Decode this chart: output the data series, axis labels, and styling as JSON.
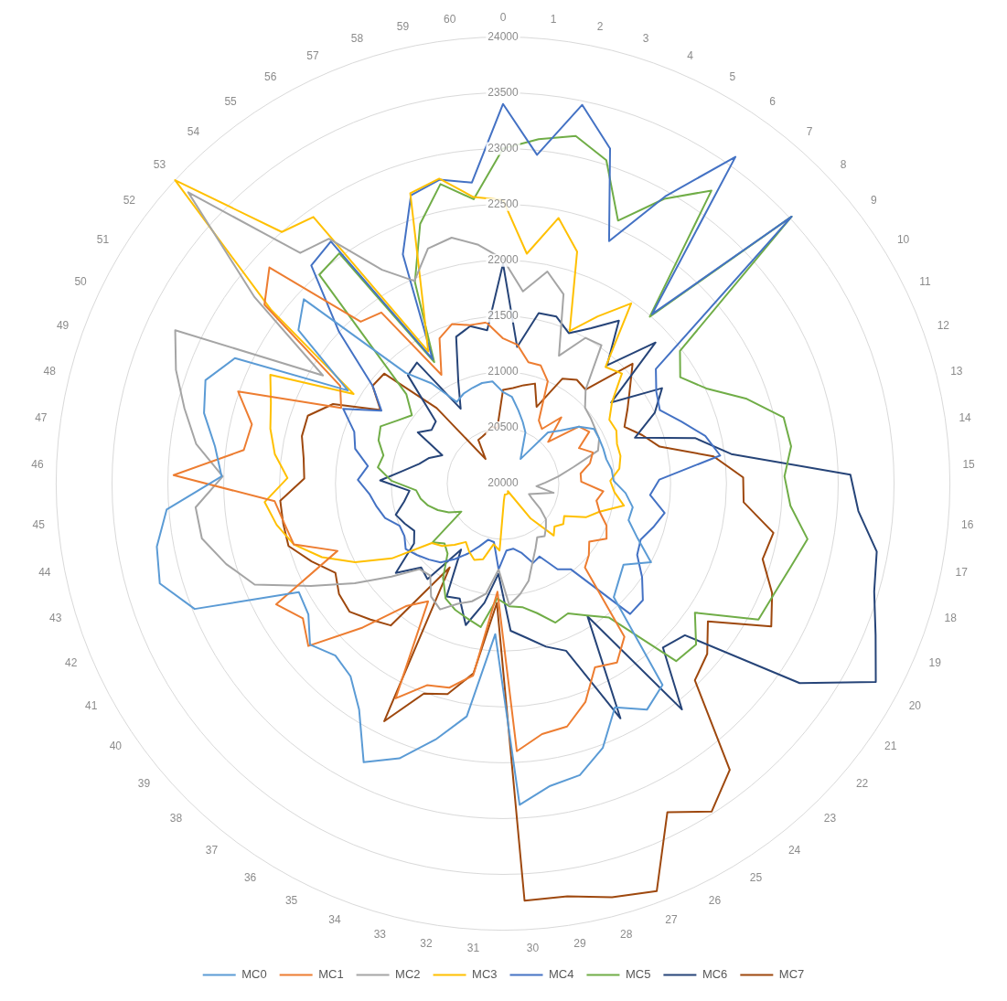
{
  "chart_data": {
    "type": "radar",
    "categories": [
      "0",
      "1",
      "2",
      "3",
      "4",
      "5",
      "6",
      "7",
      "8",
      "9",
      "10",
      "11",
      "12",
      "13",
      "14",
      "15",
      "16",
      "17",
      "18",
      "19",
      "20",
      "21",
      "22",
      "23",
      "24",
      "25",
      "26",
      "27",
      "28",
      "29",
      "30",
      "31",
      "32",
      "33",
      "34",
      "35",
      "36",
      "37",
      "38",
      "39",
      "40",
      "41",
      "42",
      "43",
      "44",
      "45",
      "46",
      "47",
      "48",
      "49",
      "50",
      "51",
      "52",
      "53",
      "54",
      "55",
      "56",
      "57",
      "58",
      "59",
      "60"
    ],
    "ylim": [
      20000,
      24000
    ],
    "yticks": [
      20000,
      20500,
      21000,
      21500,
      22000,
      22500,
      23000,
      23500,
      24000
    ],
    "grid": true,
    "legend": "bottom",
    "marker": "none",
    "line_style": "solid",
    "series": [
      {
        "name": "MC0",
        "color": "#5b9bd5",
        "values": [
          20820,
          20780,
          20670,
          20580,
          20500,
          20350,
          20270,
          20610,
          20700,
          20850,
          20950,
          20950,
          20950,
          20950,
          20980,
          20990,
          21100,
          21180,
          21170,
          21300,
          21500,
          21300,
          21350,
          21420,
          22300,
          22400,
          22240,
          22530,
          22700,
          22740,
          22880,
          21350,
          22110,
          22370,
          22630,
          22790,
          22400,
          22200,
          22150,
          22250,
          22100,
          22070,
          22980,
          23200,
          23150,
          23020,
          22520,
          22600,
          22750,
          22820,
          22650,
          21620,
          22290,
          22430,
          21320,
          21100,
          20840,
          20880,
          20900,
          20920,
          20920
        ]
      },
      {
        "name": "MC1",
        "color": "#ed7d31",
        "values": [
          21300,
          21250,
          21110,
          21110,
          21000,
          20650,
          20600,
          20790,
          20550,
          20850,
          20900,
          20750,
          20850,
          20800,
          20700,
          20700,
          20900,
          20850,
          20900,
          21000,
          21050,
          20930,
          21000,
          21050,
          21750,
          21900,
          21840,
          22090,
          22250,
          22270,
          22400,
          20970,
          21740,
          21890,
          21930,
          22150,
          21250,
          21400,
          21800,
          22270,
          22160,
          22300,
          21600,
          21950,
          21990,
          22050,
          22950,
          22340,
          22310,
          22510,
          21600,
          21700,
          22670,
          22850,
          21930,
          21880,
          21120,
          21420,
          21500,
          21450,
          21450
        ]
      },
      {
        "name": "MC2",
        "color": "#a5a5a5",
        "values": [
          22010,
          21730,
          21940,
          21780,
          21250,
          21500,
          21520,
          21120,
          21000,
          20980,
          20960,
          20950,
          20900,
          20650,
          20500,
          20380,
          20300,
          20460,
          20320,
          20250,
          20300,
          20400,
          20500,
          20550,
          20600,
          20570,
          20650,
          20750,
          20900,
          21000,
          21090,
          20770,
          21000,
          21090,
          21150,
          21260,
          21200,
          21050,
          21070,
          21300,
          21600,
          21950,
          22400,
          22580,
          22740,
          22760,
          22510,
          22770,
          22930,
          23100,
          23240,
          21880,
          22780,
          23840,
          22750,
          22690,
          22200,
          21980,
          22210,
          22250,
          22150
        ]
      },
      {
        "name": "MC3",
        "color": "#ffc000",
        "values": [
          22540,
          22070,
          22430,
          22180,
          21490,
          21720,
          21980,
          21390,
          21450,
          21220,
          21110,
          21120,
          21080,
          21080,
          21050,
          20960,
          21000,
          21100,
          20900,
          20800,
          20620,
          20650,
          20600,
          20650,
          20400,
          20080,
          20100,
          20100,
          20100,
          20100,
          20150,
          20600,
          20550,
          20700,
          20730,
          20680,
          20620,
          20700,
          20780,
          20830,
          21200,
          21500,
          21750,
          21950,
          22060,
          22140,
          21930,
          22060,
          22140,
          22200,
          22300,
          21560,
          22600,
          24000,
          23000,
          22930,
          21360,
          21800,
          22730,
          22790,
          22580
        ]
      },
      {
        "name": "MC4",
        "color": "#4472c4",
        "values": [
          23400,
          22960,
          23465,
          23150,
          22370,
          22960,
          23590,
          22020,
          23520,
          21710,
          21600,
          21550,
          21690,
          21860,
          21960,
          21400,
          21320,
          21470,
          21400,
          21330,
          21360,
          21500,
          21630,
          21630,
          20980,
          20910,
          20730,
          20760,
          20640,
          20590,
          20600,
          20770,
          20530,
          20520,
          20600,
          20700,
          20800,
          20900,
          20950,
          21000,
          21050,
          21000,
          21000,
          21100,
          21150,
          21200,
          21300,
          21220,
          21360,
          21410,
          21580,
          21270,
          21460,
          22000,
          22600,
          22660,
          21280,
          22240,
          22710,
          22780,
          22710
        ]
      },
      {
        "name": "MC5",
        "color": "#70ad47",
        "values": [
          23000,
          23100,
          23180,
          23040,
          22570,
          22930,
          23220,
          21990,
          23520,
          21980,
          21850,
          22010,
          22310,
          22580,
          22600,
          22520,
          22580,
          22770,
          22680,
          22620,
          22590,
          22070,
          22250,
          22220,
          21530,
          21400,
          21300,
          21330,
          21200,
          21120,
          21100,
          21030,
          21300,
          21250,
          21210,
          21150,
          21000,
          20800,
          20750,
          20820,
          20450,
          20550,
          20630,
          20700,
          20750,
          20780,
          21000,
          21130,
          21100,
          21180,
          21210,
          21100,
          21020,
          21180,
          22490,
          22530,
          21250,
          21970,
          22440,
          22740,
          22560
        ]
      },
      {
        "name": "MC6",
        "color": "#264478",
        "values": [
          21970,
          21230,
          21560,
          21570,
          21470,
          21600,
          21790,
          21410,
          21860,
          21210,
          21660,
          21500,
          21250,
          21770,
          22060,
          23110,
          23190,
          23400,
          23460,
          23600,
          23780,
          23200,
          22120,
          22050,
          22580,
          21410,
          22350,
          21600,
          21510,
          21400,
          21320,
          20810,
          21080,
          21310,
          21100,
          21130,
          20700,
          21090,
          21050,
          21250,
          20960,
          20900,
          20950,
          21000,
          20900,
          20840,
          21100,
          20900,
          20770,
          20700,
          20600,
          20890,
          20800,
          20820,
          21290,
          21330,
          20770,
          21000,
          21380,
          21440,
          21380
        ]
      },
      {
        "name": "MC7",
        "color": "#9e480e",
        "values": [
          20840,
          20860,
          20900,
          20940,
          20750,
          21080,
          21140,
          21120,
          21580,
          21420,
          21300,
          21200,
          21320,
          21440,
          21900,
          22150,
          22160,
          22460,
          22420,
          22600,
          22720,
          22210,
          22380,
          22460,
          23270,
          23480,
          23290,
          23900,
          23830,
          23740,
          23740,
          21070,
          21720,
          21950,
          22010,
          22380,
          20890,
          21620,
          21700,
          21790,
          21770,
          21700,
          21850,
          22000,
          22000,
          22000,
          21780,
          21800,
          21850,
          21850,
          21680,
          21280,
          21460,
          21450,
          20900,
          20270,
          20450,
          20460,
          20480,
          20520,
          20500
        ]
      }
    ]
  }
}
